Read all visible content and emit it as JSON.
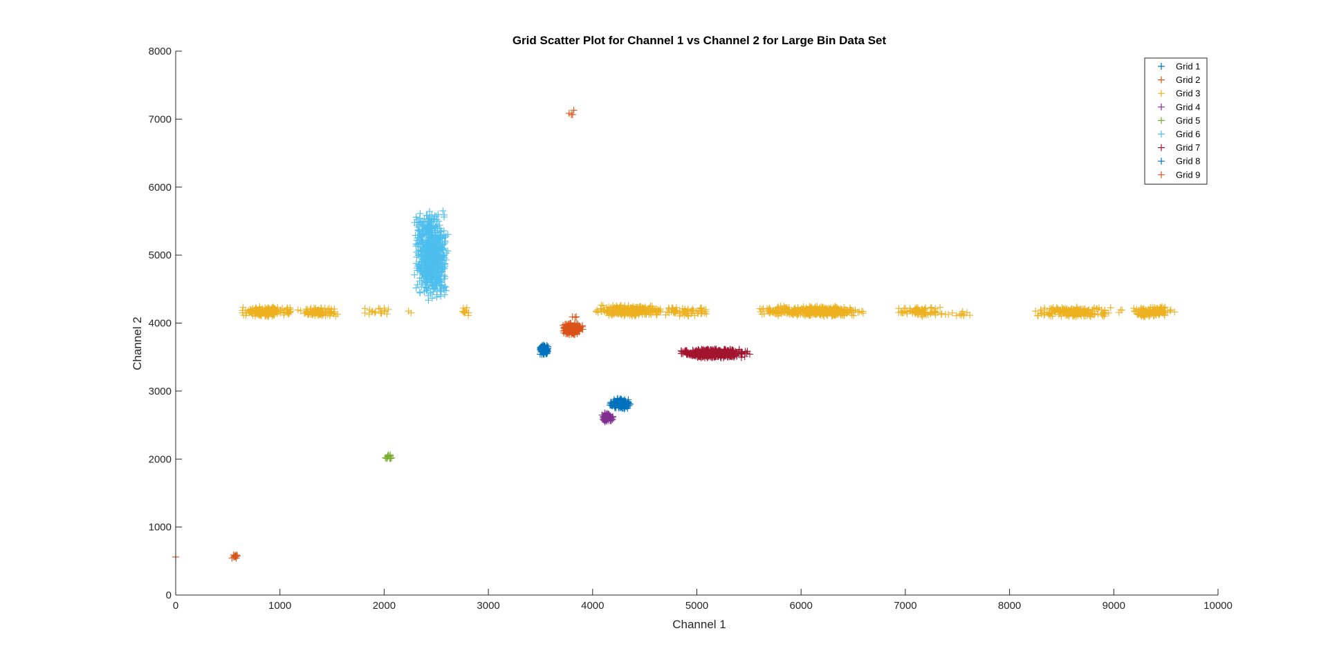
{
  "chart_data": {
    "type": "scatter",
    "title": "Grid Scatter Plot for Channel 1 vs Channel 2 for Large Bin Data Set",
    "xlabel": "Channel 1",
    "ylabel": "Channel 2",
    "xlim": [
      0,
      10000
    ],
    "ylim": [
      0,
      8000
    ],
    "xticks": [
      "0",
      "1000",
      "2000",
      "3000",
      "4000",
      "5000",
      "6000",
      "7000",
      "8000",
      "9000",
      "10000"
    ],
    "yticks": [
      "0",
      "1000",
      "2000",
      "3000",
      "4000",
      "5000",
      "6000",
      "7000",
      "8000"
    ],
    "grid": false,
    "marker": "+",
    "legend_position": "top-right",
    "series": [
      {
        "name": "Grid 1",
        "color": "#0072BD",
        "clusters": [
          {
            "x": [
              3490,
              3580
            ],
            "y": [
              3530,
              3680
            ],
            "n": 90
          }
        ]
      },
      {
        "name": "Grid 2",
        "color": "#D95319",
        "clusters": [
          {
            "x": [
              3720,
              3900
            ],
            "y": [
              3830,
              4000
            ],
            "n": 180
          },
          {
            "x": [
              3800,
              3860
            ],
            "y": [
              4040,
              4130
            ],
            "n": 3
          }
        ]
      },
      {
        "name": "Grid 3",
        "color": "#EDB120",
        "clusters": [
          {
            "x": [
              610,
              1130
            ],
            "y": [
              4100,
              4240
            ],
            "n": 160
          },
          {
            "x": [
              1170,
              1560
            ],
            "y": [
              4100,
              4230
            ],
            "n": 90
          },
          {
            "x": [
              1820,
              2060
            ],
            "y": [
              4100,
              4230
            ],
            "n": 18
          },
          {
            "x": [
              2230,
              2260
            ],
            "y": [
              4140,
              4190
            ],
            "n": 2
          },
          {
            "x": [
              2720,
              2820
            ],
            "y": [
              4100,
              4230
            ],
            "n": 10
          },
          {
            "x": [
              4040,
              4650
            ],
            "y": [
              4100,
              4260
            ],
            "n": 300
          },
          {
            "x": [
              4650,
              5150
            ],
            "y": [
              4100,
              4230
            ],
            "n": 70
          },
          {
            "x": [
              5640,
              6580
            ],
            "y": [
              4100,
              4250
            ],
            "n": 380
          },
          {
            "x": [
              6940,
              7380
            ],
            "y": [
              4100,
              4240
            ],
            "n": 80
          },
          {
            "x": [
              7380,
              7680
            ],
            "y": [
              4100,
              4180
            ],
            "n": 12
          },
          {
            "x": [
              8240,
              8950
            ],
            "y": [
              4090,
              4240
            ],
            "n": 200
          },
          {
            "x": [
              9000,
              9080
            ],
            "y": [
              4120,
              4230
            ],
            "n": 3
          },
          {
            "x": [
              9180,
              9580
            ],
            "y": [
              4090,
              4250
            ],
            "n": 110
          }
        ]
      },
      {
        "name": "Grid 4",
        "color": "#7E2F8E",
        "clusters": [
          {
            "x": [
              4080,
              4200
            ],
            "y": [
              2540,
              2680
            ],
            "n": 60
          }
        ]
      },
      {
        "name": "Grid 5",
        "color": "#77AC30",
        "clusters": [
          {
            "x": [
              2000,
              2080
            ],
            "y": [
              2000,
              2070
            ],
            "n": 14
          }
        ]
      },
      {
        "name": "Grid 6",
        "color": "#4DBEEE",
        "clusters": [
          {
            "x": [
              2300,
              2600
            ],
            "y": [
              4380,
              5620
            ],
            "n": 700
          }
        ]
      },
      {
        "name": "Grid 7",
        "color": "#A2142F",
        "clusters": [
          {
            "x": [
              4850,
              5480
            ],
            "y": [
              3490,
              3620
            ],
            "n": 420
          }
        ]
      },
      {
        "name": "Grid 8",
        "color": "#0072BD",
        "clusters": [
          {
            "x": [
              4170,
              4360
            ],
            "y": [
              2740,
              2890
            ],
            "n": 150
          }
        ]
      },
      {
        "name": "Grid 9",
        "color": "#D95319",
        "clusters": [
          {
            "x": [
              540,
              600
            ],
            "y": [
              540,
              590
            ],
            "n": 12
          },
          {
            "x": 0,
            "y": 560,
            "n": 1
          },
          {
            "x": [
              3750,
              3850
            ],
            "y": [
              7040,
              7160
            ],
            "n": 4
          }
        ]
      }
    ]
  }
}
